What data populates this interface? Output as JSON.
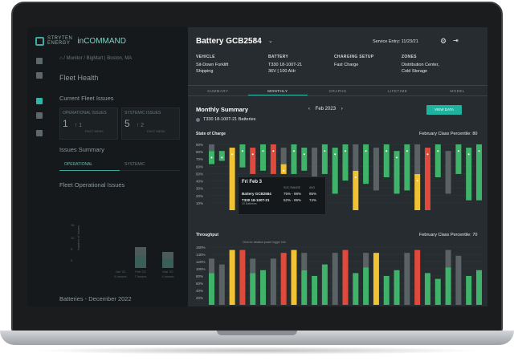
{
  "app": {
    "brand_top": "STRYTEN",
    "brand_bottom": "ENERGY",
    "app_name": "inCOMMAND"
  },
  "left": {
    "breadcrumb": "⌂  /  Monitor  /  BigMart | Boston, MA",
    "fleet_health": "Fleet Health",
    "current_issues": "Current Fleet Issues",
    "cards": [
      {
        "label": "OPERATIONAL ISSUES",
        "value": "1",
        "delta": "↑ 1",
        "sub": "PAST WEEK"
      },
      {
        "label": "SYSTEMIC ISSUES",
        "value": "5",
        "delta": "↑ 2",
        "sub": "PAST WEEK"
      }
    ],
    "issues_summary": "Issues Summary",
    "tabs": [
      "OPERATIONAL",
      "SYSTEMIC"
    ],
    "fleet_operational_issues": "Fleet Operational Issues",
    "mini_chart": {
      "ylabel": "Number of Issues",
      "yticks": [
        "0",
        "5",
        "10",
        "15"
      ],
      "months": [
        {
          "m": "Jan '22",
          "n": "6 Issues"
        },
        {
          "m": "Feb '22",
          "n": "7 Issues"
        },
        {
          "m": "Mar '22",
          "n": "4 Issues"
        }
      ]
    },
    "batteries": "Batteries - December 2022"
  },
  "right": {
    "title": "Battery GCB2584",
    "service_entry": "Service Entry: 11/23/21",
    "info": [
      {
        "h": "VEHICLE",
        "v": [
          "Sit-Down Forklift",
          "Shipping"
        ]
      },
      {
        "h": "BATTERY",
        "v": [
          "T330 18-100T-21",
          "36V | 100 AHr"
        ]
      },
      {
        "h": "CHARGING SETUP",
        "v": [
          "Fast Charge"
        ]
      },
      {
        "h": "ZONES",
        "v": [
          "Distribution Center,",
          "Cold Storage"
        ]
      }
    ],
    "tabs": [
      "SUMMARY",
      "MONTHLY",
      "GRAPHS",
      "LIFETIME",
      "MODEL"
    ],
    "monthly_summary": "Monthly  Summary",
    "month": "Feb 2023",
    "view_data": "VIEW DATA",
    "series_select": "T330 18-100T-21 Batteries",
    "soc_label": "State of Charge",
    "soc_pct": "February Class Percentile: 80",
    "tp_label": "Throughput",
    "tp_pct": "February Class Percentile: 70",
    "soc_yticks": [
      "90%",
      "80%",
      "70%",
      "60%",
      "50%",
      "40%",
      "30%",
      "20%",
      "10%"
    ],
    "tp_yticks": [
      "160%",
      "140%",
      "120%",
      "100%",
      "80%",
      "60%",
      "40%",
      "20%"
    ],
    "tooltip": {
      "date": "Fri Feb 3",
      "cols": [
        "SOC RANGE",
        "AVG"
      ],
      "rows": [
        {
          "name": "Battery GCB2584",
          "range": "75% - 98%",
          "avg": "85%"
        },
        {
          "name": "T330 18-100T-21",
          "sub": "20 Batteries",
          "range": "52% - 99%",
          "avg": "74%"
        }
      ],
      "note": "Click for detailed power logger info"
    }
  },
  "colors": {
    "green": "#3fb36a",
    "red": "#e04a3c",
    "yellow": "#f1c232",
    "grey": "#5b6266",
    "accent": "#1fb29e"
  }
}
